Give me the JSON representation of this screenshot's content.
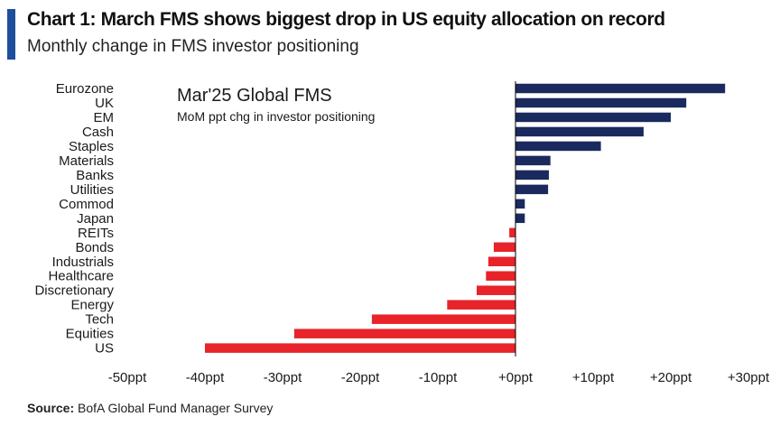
{
  "title": "Chart 1: March FMS shows biggest drop in US equity allocation on record",
  "subtitle": "Monthly change in FMS investor positioning",
  "source": {
    "label": "Source:",
    "text": "BofA Global Fund Manager Survey"
  },
  "colors": {
    "accent": "#1f4e9c",
    "positive": "#1a2a5e",
    "negative": "#e8232a"
  },
  "chart_data": {
    "type": "bar",
    "orientation": "horizontal",
    "title": "Mar'25 Global FMS",
    "subtitle": "MoM ppt chg in investor positioning",
    "xlabel": "",
    "ylabel": "",
    "categories": [
      "Eurozone",
      "UK",
      "EM",
      "Cash",
      "Staples",
      "Materials",
      "Banks",
      "Utilities",
      "Commod",
      "Japan",
      "REITs",
      "Bonds",
      "Industrials",
      "Healthcare",
      "Discretionary",
      "Energy",
      "Tech",
      "Equities",
      "US"
    ],
    "values": [
      27,
      22,
      20,
      16.5,
      11,
      4.5,
      4.3,
      4.2,
      1.2,
      1.2,
      -0.8,
      -2.8,
      -3.5,
      -3.8,
      -5,
      -8.8,
      -18.5,
      -28.5,
      -40
    ],
    "xlim": [
      -50,
      30
    ],
    "xticks": [
      -50,
      -40,
      -30,
      -20,
      -10,
      0,
      10,
      20,
      30
    ],
    "xtick_labels": [
      "-50ppt",
      "-40ppt",
      "-30ppt",
      "-20ppt",
      "-10ppt",
      "+0ppt",
      "+10ppt",
      "+20ppt",
      "+30ppt"
    ],
    "grid": false,
    "legend": "none"
  }
}
